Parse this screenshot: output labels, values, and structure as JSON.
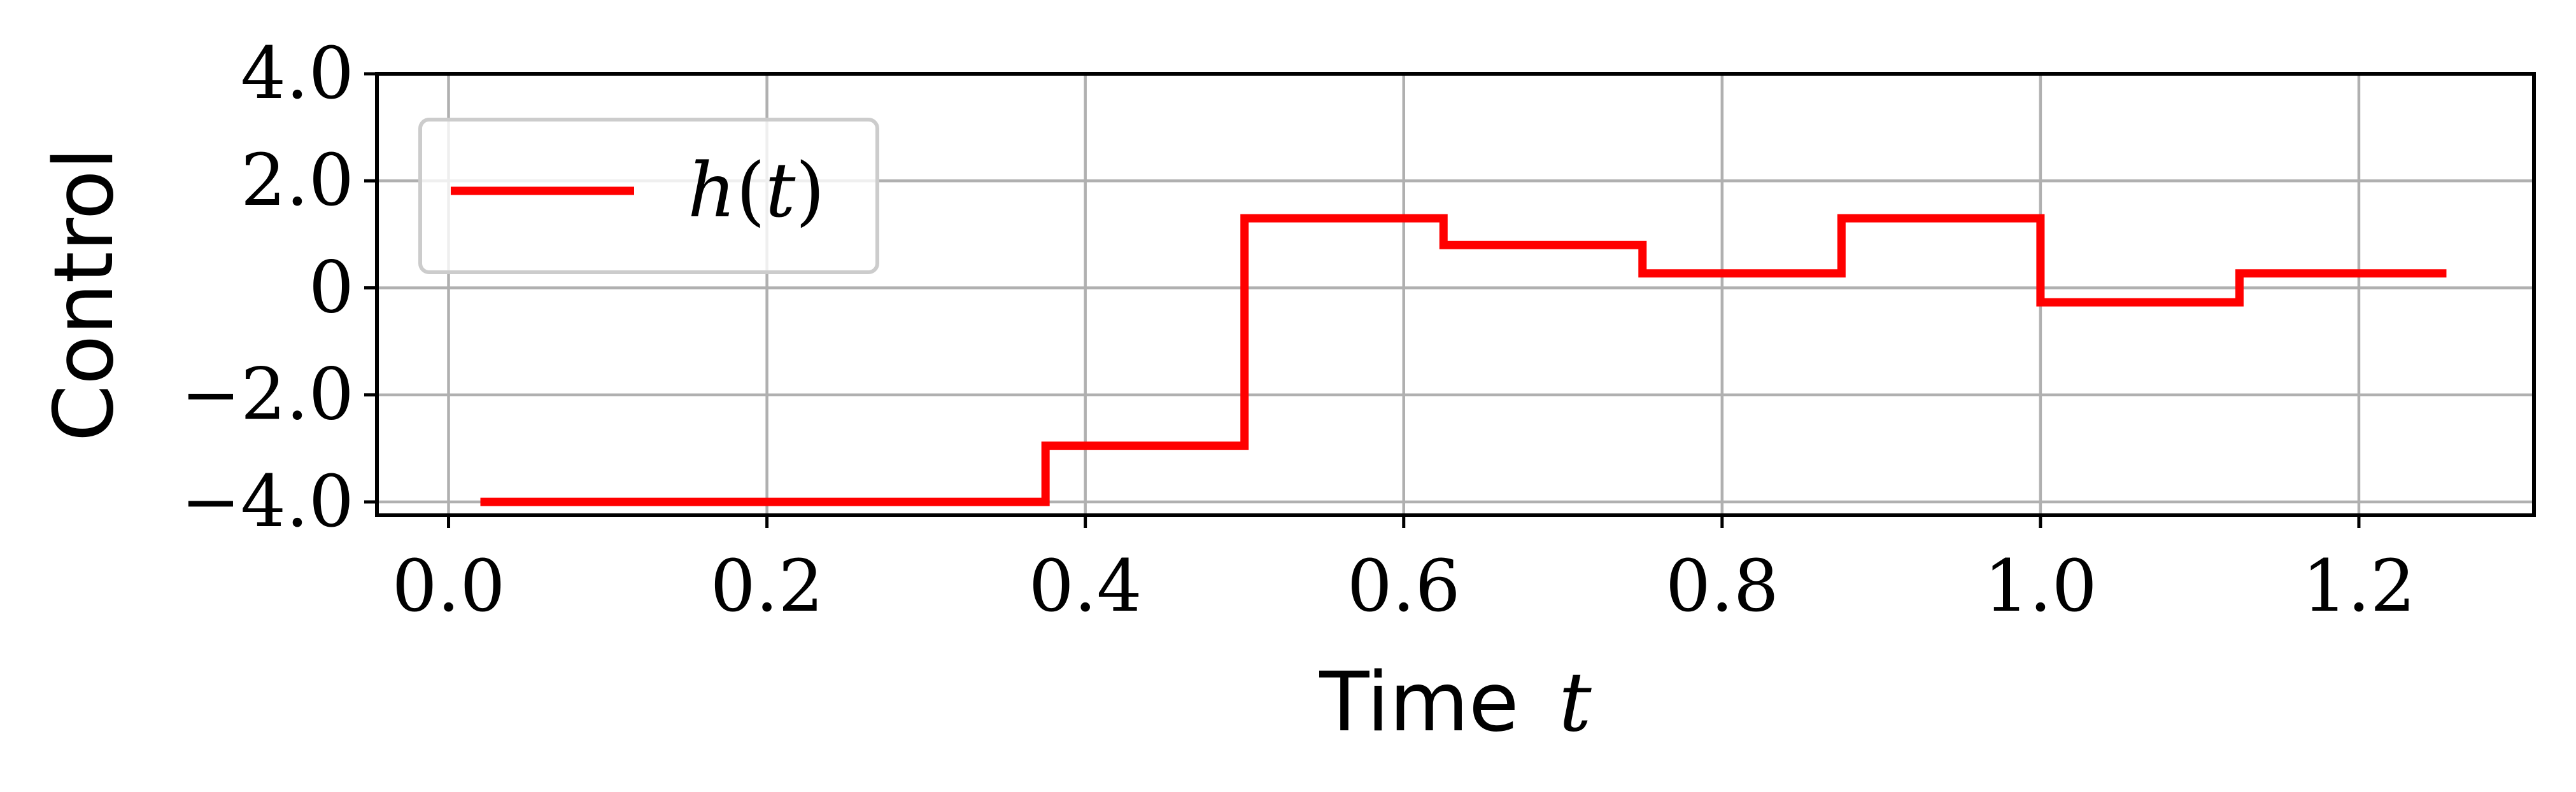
{
  "chart_data": {
    "type": "line",
    "step": "post",
    "xlabel": "Time",
    "xlabel_var": "t",
    "ylabel": "Control",
    "xlim": [
      -0.045,
      1.31
    ],
    "ylim": [
      -4.25,
      4.0
    ],
    "xticks": [
      0.0,
      0.2,
      0.4,
      0.6,
      0.8,
      1.0,
      1.2
    ],
    "xtick_labels": [
      "0.0",
      "0.2",
      "0.4",
      "0.6",
      "0.8",
      "1.0",
      "1.2"
    ],
    "yticks": [
      -4.0,
      -2.0,
      0.0,
      2.0,
      4.0
    ],
    "ytick_labels": [
      "−4.0",
      "−2.0",
      "0",
      "2.0",
      "4.0"
    ],
    "grid": true,
    "legend_position": "upper-left",
    "series": [
      {
        "name": "h(t)",
        "name_func": "h",
        "name_arg": "t",
        "color": "#ff0000",
        "x": [
          0.02,
          0.375,
          0.5,
          0.625,
          0.75,
          0.875,
          1.0,
          1.125,
          1.255
        ],
        "y": [
          -4.0,
          -2.95,
          1.3,
          0.8,
          0.27,
          1.3,
          -0.27,
          0.27,
          0.27
        ]
      }
    ]
  }
}
